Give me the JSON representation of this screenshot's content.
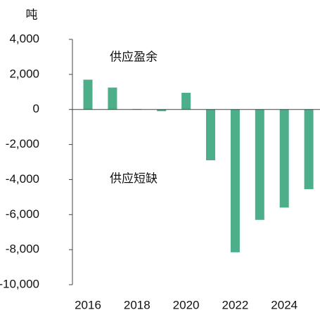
{
  "chart_data": {
    "type": "bar",
    "y_unit": "吨",
    "categories": [
      "2016",
      null,
      "2018",
      null,
      "2020",
      null,
      "2022",
      null,
      "2024",
      null
    ],
    "values": [
      1700,
      1250,
      30,
      -100,
      950,
      -2900,
      -8150,
      -6300,
      -5600,
      -4550
    ],
    "color": "#4caf8a",
    "ylim": [
      -10000,
      4000
    ],
    "yticks": [
      {
        "value": 4000,
        "label": "4,000"
      },
      {
        "value": 2000,
        "label": "2,000"
      },
      0,
      {
        "value": -2000,
        "label": "-2,000"
      },
      {
        "value": -4000,
        "label": "-4,000"
      },
      {
        "value": -6000,
        "label": "-6,000"
      },
      {
        "value": -8000,
        "label": "-8,000"
      },
      {
        "value": -10000,
        "label": "-10,000"
      }
    ],
    "annotations": [
      "供应盈余",
      "供应短缺"
    ]
  }
}
